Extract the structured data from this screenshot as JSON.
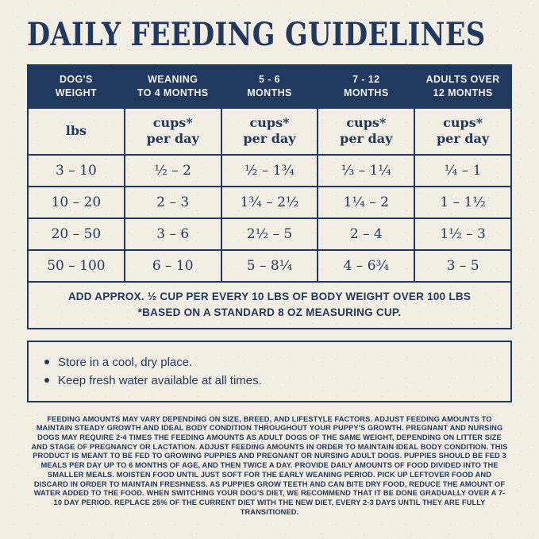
{
  "title": "DAILY FEEDING GUIDELINES",
  "colors": {
    "navy": "#21395e",
    "cream": "#f3eee4"
  },
  "table": {
    "headers": [
      "DOG'S\nWEIGHT",
      "WEANING\nTO 4 MONTHS",
      "5 - 6\nMONTHS",
      "7 - 12\nMONTHS",
      "ADULTS OVER\n12 MONTHS"
    ],
    "units": [
      "lbs",
      "cups*\nper day",
      "cups*\nper day",
      "cups*\nper day",
      "cups*\nper day"
    ],
    "rows": [
      [
        "3 – 10",
        "½ – 2",
        "½ – 1¾",
        "⅓ – 1¼",
        "¼ – 1"
      ],
      [
        "10 – 20",
        "2 – 3",
        "1¾ – 2½",
        "1¼ – 2",
        "1 – 1½"
      ],
      [
        "20 – 50",
        "3 – 6",
        "2½ – 5",
        "2 – 4",
        "1½ – 3"
      ],
      [
        "50 – 100",
        "6 – 10",
        "5 – 8¼",
        "4 – 6¾",
        "3 – 5"
      ]
    ],
    "note": "ADD APPROX. ½ CUP PER EVERY 10 LBS OF BODY WEIGHT OVER 100 LBS\n*BASED ON A STANDARD 8 OZ MEASURING CUP."
  },
  "storage_tips": {
    "items": [
      "Store in a cool, dry place.",
      "Keep fresh water available at all times."
    ]
  },
  "fine_print": "FEEDING AMOUNTS MAY VARY DEPENDING ON SIZE, BREED, AND LIFESTYLE FACTORS. ADJUST FEEDING AMOUNTS TO MAINTAIN STEADY GROWTH AND IDEAL BODY CONDITION THROUGHOUT YOUR PUPPY'S GROWTH. PREGNANT AND NURSING DOGS MAY REQUIRE 2-4 TIMES THE FEEDING AMOUNTS AS ADULT DOGS OF THE SAME WEIGHT, DEPENDING ON LITTER SIZE AND STAGE OF PREGNANCY OR LACTATION. ADJUST FEEDING AMOUNTS IN ORDER TO MAINTAIN IDEAL BODY CONDITION. THIS PRODUCT IS MEANT TO BE FED TO GROWING PUPPIES AND PREGNANT OR NURSING ADULT DOGS. PUPPIES SHOULD BE FED 3 MEALS PER DAY UP TO 6 MONTHS OF AGE, AND THEN TWICE A DAY. PROVIDE DAILY AMOUNTS OF FOOD DIVIDED INTO THE SMALLER MEALS. MOISTEN FOOD UNTIL JUST SOFT FOR THE EARLY WEANING PERIOD. PICK UP LEFTOVER FOOD AND DISCARD IN ORDER TO MAINTAIN FRESHNESS. AS PUPPIES GROW TEETH AND CAN BITE DRY FOOD, REDUCE THE AMOUNT OF WATER ADDED TO THE FOOD. WHEN SWITCHING YOUR DOG'S DIET, WE RECOMMEND THAT IT BE DONE GRADUALLY OVER A 7-10 DAY PERIOD. REPLACE 25% OF THE CURRENT DIET WITH THE NEW DIET, EVERY 2-3 DAYS UNTIL THEY ARE FULLY TRANSITIONED."
}
